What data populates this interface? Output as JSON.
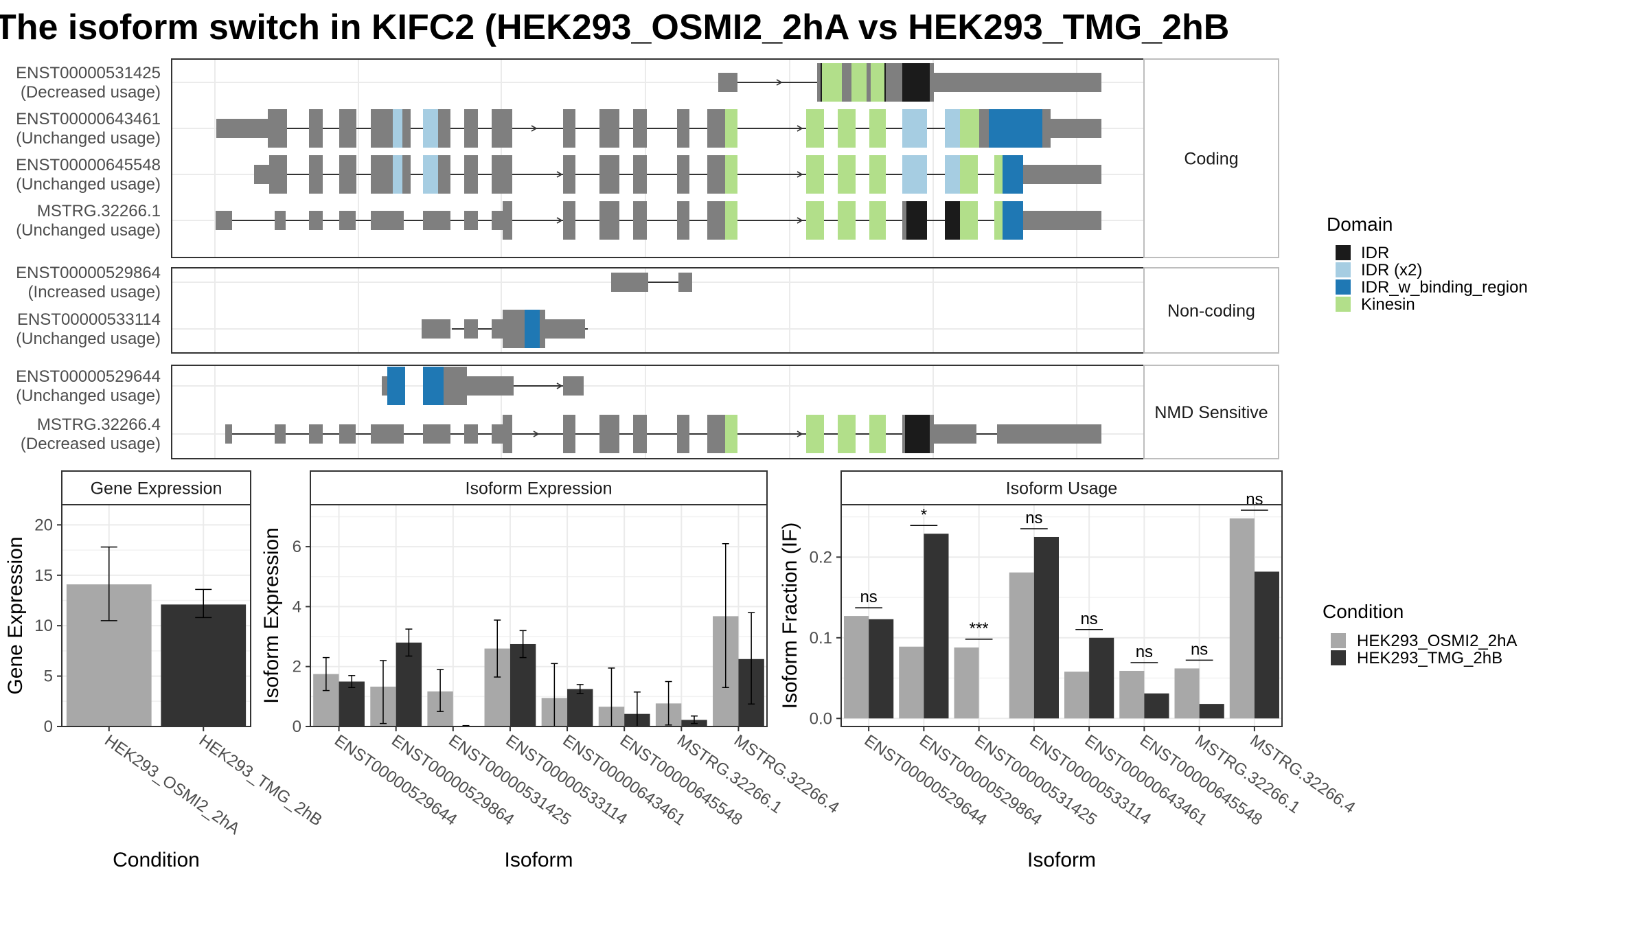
{
  "title": "The isoform switch in KIFC2 (HEK293_OSMI2_2hA vs HEK293_TMG_2hB",
  "colors": {
    "IDR": "#1b1b1b",
    "IDR_x2": "#a6cde2",
    "IDR_w_binding_region": "#1f78b4",
    "Kinesin": "#b2df8a",
    "exon": "#7f7f7f",
    "cond_A": "#a8a8a8",
    "cond_B": "#333333"
  },
  "domain_legend": {
    "title": "Domain",
    "items": [
      {
        "key": "IDR",
        "label": "IDR"
      },
      {
        "key": "IDR_x2",
        "label": "IDR (x2)"
      },
      {
        "key": "IDR_w_binding_region",
        "label": "IDR_w_binding_region"
      },
      {
        "key": "Kinesin",
        "label": "Kinesin"
      }
    ]
  },
  "condition_legend": {
    "title": "Condition",
    "items": [
      {
        "key": "cond_A",
        "label": "HEK293_OSMI2_2hA"
      },
      {
        "key": "cond_B",
        "label": "HEK293_TMG_2hB"
      }
    ]
  },
  "transcript_groups": [
    {
      "label": "Coding",
      "transcripts": [
        {
          "id": "ENST00000531425",
          "usage": "(Decreased usage)"
        },
        {
          "id": "ENST00000643461",
          "usage": "(Unchanged usage)"
        },
        {
          "id": "ENST00000645548",
          "usage": "(Unchanged usage)"
        },
        {
          "id": "MSTRG.32266.1",
          "usage": "(Unchanged usage)"
        }
      ]
    },
    {
      "label": "Non-coding",
      "transcripts": [
        {
          "id": "ENST00000529864",
          "usage": "(Increased usage)"
        },
        {
          "id": "ENST00000533114",
          "usage": "(Unchanged usage)"
        }
      ]
    },
    {
      "label": "NMD Sensitive",
      "transcripts": [
        {
          "id": "ENST00000529644",
          "usage": "(Unchanged usage)"
        },
        {
          "id": "MSTRG.32266.4",
          "usage": "(Decreased usage)"
        }
      ]
    }
  ],
  "chart_data": [
    {
      "type": "bar",
      "title": "Gene Expression",
      "xlabel": "Condition",
      "ylabel": "Gene Expression",
      "ylim": [
        0,
        22
      ],
      "yticks": [
        "0",
        "5",
        "10",
        "15",
        "20"
      ],
      "categories": [
        "HEK293_OSMI2_2hA",
        "HEK293_TMG_2hB"
      ],
      "values": [
        14.1,
        12.1
      ],
      "errors": [
        [
          10.5,
          17.8
        ],
        [
          10.8,
          13.6
        ]
      ]
    },
    {
      "type": "bar",
      "title": "Isoform Expression",
      "xlabel": "Isoform",
      "ylabel": "Isoform Expression",
      "ylim": [
        0,
        7.4
      ],
      "yticks": [
        "0",
        "2",
        "4",
        "6"
      ],
      "categories": [
        "ENST00000529644",
        "ENST00000529864",
        "ENST00000531425",
        "ENST00000533114",
        "ENST00000643461",
        "ENST00000645548",
        "MSTRG.32266.1",
        "MSTRG.32266.4"
      ],
      "series": [
        {
          "name": "HEK293_OSMI2_2hA",
          "values": [
            1.75,
            1.33,
            1.17,
            2.6,
            0.95,
            0.66,
            0.77,
            3.68
          ],
          "errors": [
            [
              1.2,
              2.3
            ],
            [
              0.1,
              2.2
            ],
            [
              0.5,
              1.9
            ],
            [
              1.65,
              3.55
            ],
            [
              0,
              2.1
            ],
            [
              0,
              1.95
            ],
            [
              0.05,
              1.5
            ],
            [
              1.3,
              6.1
            ]
          ]
        },
        {
          "name": "HEK293_TMG_2hB",
          "values": [
            1.5,
            2.8,
            0.02,
            2.75,
            1.25,
            0.42,
            0.22,
            2.25
          ],
          "errors": [
            [
              1.3,
              1.7
            ],
            [
              2.35,
              3.25
            ],
            [
              0,
              0.03
            ],
            [
              2.3,
              3.2
            ],
            [
              1.1,
              1.4
            ],
            [
              0,
              1.15
            ],
            [
              0.1,
              0.35
            ],
            [
              0.75,
              3.8
            ]
          ]
        }
      ]
    },
    {
      "type": "bar",
      "title": "Isoform Usage",
      "xlabel": "Isoform",
      "ylabel": "Isoform Fraction (IF)",
      "ylim": [
        -0.01,
        0.265
      ],
      "yticks": [
        "0.0",
        "0.1",
        "0.2"
      ],
      "categories": [
        "ENST00000529644",
        "ENST00000529864",
        "ENST00000531425",
        "ENST00000533114",
        "ENST00000643461",
        "ENST00000645548",
        "MSTRG.32266.1",
        "MSTRG.32266.4"
      ],
      "series": [
        {
          "name": "HEK293_OSMI2_2hA",
          "values": [
            0.127,
            0.089,
            0.088,
            0.181,
            0.058,
            0.059,
            0.062,
            0.248
          ]
        },
        {
          "name": "HEK293_TMG_2hB",
          "values": [
            0.123,
            0.229,
            0.0,
            0.225,
            0.1,
            0.031,
            0.018,
            0.182
          ]
        }
      ],
      "significance": [
        "ns",
        "*",
        "***",
        "ns",
        "ns",
        "ns",
        "ns",
        "ns"
      ]
    }
  ]
}
